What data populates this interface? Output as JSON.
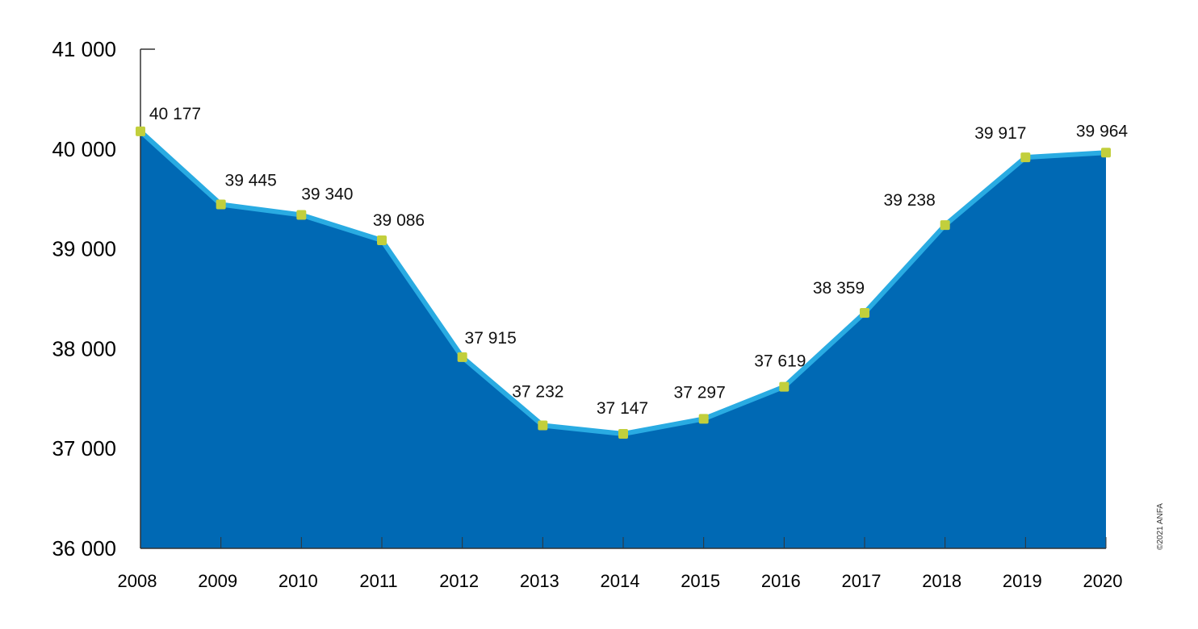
{
  "chart_data": {
    "type": "area",
    "title": "",
    "xlabel": "",
    "ylabel": "",
    "categories": [
      "2008",
      "2009",
      "2010",
      "2011",
      "2012",
      "2013",
      "2014",
      "2015",
      "2016",
      "2017",
      "2018",
      "2019",
      "2020"
    ],
    "values": [
      40177,
      39445,
      39340,
      39086,
      37915,
      37232,
      37147,
      37297,
      37619,
      38359,
      39238,
      39917,
      39964
    ],
    "value_labels": [
      "40 177",
      "39 445",
      "39 340",
      "39 086",
      "37 915",
      "37 232",
      "37 147",
      "37 297",
      "37 619",
      "38 359",
      "39 238",
      "39 917",
      "39 964"
    ],
    "ylim": [
      36000,
      41000
    ],
    "yticks": [
      36000,
      37000,
      38000,
      39000,
      40000,
      41000
    ],
    "ytick_labels": [
      "36 000",
      "37 000",
      "38 000",
      "39 000",
      "40 000",
      "41 000"
    ],
    "grid": false,
    "legend": "none",
    "highlight_index": 12
  },
  "colors": {
    "area_fill": "#0069b4",
    "line": "#29abe2",
    "marker": "#c2cf3c",
    "highlight_label": "#e2231a",
    "axis": "#333333"
  },
  "copyright": "©2021 ANFA"
}
